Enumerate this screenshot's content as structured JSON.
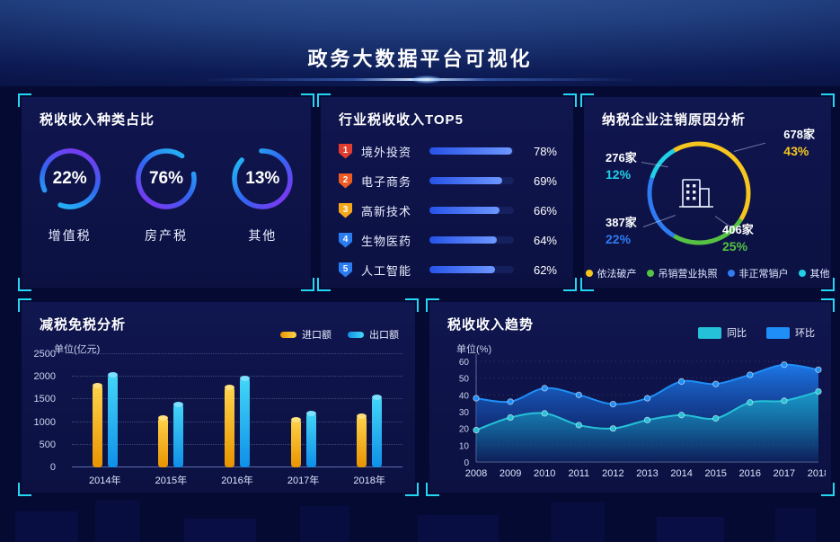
{
  "banner": {
    "title": "政务大数据平台可视化"
  },
  "chart_data": [
    {
      "id": "tax-type-share",
      "type": "pie",
      "title": "税收收入种类占比",
      "items": [
        {
          "label": "增值税",
          "value": 22,
          "pct_label": "22%"
        },
        {
          "label": "房产税",
          "value": 76,
          "pct_label": "76%"
        },
        {
          "label": "其他",
          "value": 13,
          "pct_label": "13%"
        }
      ],
      "ring_gradient": [
        "#8d2df2",
        "#3166f2",
        "#1fc9f5"
      ]
    },
    {
      "id": "industry-tax-top5",
      "type": "bar",
      "title": "行业税收收入TOP5",
      "items": [
        {
          "rank": "1",
          "label": "境外投资",
          "value": 78,
          "pct_label": "78%",
          "badge_color": "#e23c2e"
        },
        {
          "rank": "2",
          "label": "电子商务",
          "value": 69,
          "pct_label": "69%",
          "badge_color": "#ef5b23"
        },
        {
          "rank": "3",
          "label": "高新技术",
          "value": 66,
          "pct_label": "66%",
          "badge_color": "#f5a81c"
        },
        {
          "rank": "4",
          "label": "生物医药",
          "value": 64,
          "pct_label": "64%",
          "badge_color": "#2a7cf0"
        },
        {
          "rank": "5",
          "label": "人工智能",
          "value": 62,
          "pct_label": "62%",
          "badge_color": "#2a7cf0"
        }
      ],
      "bar_max": 80
    },
    {
      "id": "deregistration-reasons",
      "type": "pie",
      "title": "纳税企业注销原因分析",
      "slices": [
        {
          "label": "依法破产",
          "count": "678家",
          "value": 43,
          "pct_label": "43%",
          "color": "#f6c51e"
        },
        {
          "label": "吊销营业执照",
          "count": "406家",
          "value": 25,
          "pct_label": "25%",
          "color": "#56c243"
        },
        {
          "label": "非正常销户",
          "count": "387家",
          "value": 22,
          "pct_label": "22%",
          "color": "#2e7bf2"
        },
        {
          "label": "其他",
          "count": "276家",
          "value": 12,
          "pct_label": "12%",
          "color": "#1fd0e6"
        }
      ]
    },
    {
      "id": "tax-reduction",
      "type": "bar",
      "title": "减税免税分析",
      "unit": "单位(亿元)",
      "categories": [
        "2014年",
        "2015年",
        "2016年",
        "2017年",
        "2018年"
      ],
      "series": [
        {
          "name": "进口额",
          "color": "#e89400",
          "color_light": "#ffd44d",
          "cap_color": "#ffe07a",
          "values": [
            1850,
            1130,
            1800,
            1100,
            1180
          ]
        },
        {
          "name": "出口额",
          "color": "#0f8fe8",
          "color_light": "#45d7f7",
          "cap_color": "#7ce0ff",
          "values": [
            2080,
            1430,
            2000,
            1240,
            1580
          ]
        }
      ],
      "ylim": [
        0,
        2500
      ],
      "yticks": [
        0,
        500,
        1000,
        1500,
        2000,
        2500
      ],
      "grid": "dotted",
      "legend_position": "top-right"
    },
    {
      "id": "tax-trend",
      "type": "area",
      "title": "税收收入趋势",
      "unit": "单位(%)",
      "x": [
        "2008",
        "2009",
        "2010",
        "2011",
        "2012",
        "2013",
        "2014",
        "2015",
        "2016",
        "2017",
        "2018"
      ],
      "series": [
        {
          "name": "同比",
          "color": "#25c1d8",
          "fill_top": "rgba(25,180,205,0.70)",
          "fill_bottom": "rgba(25,180,205,0.04)",
          "values": [
            19,
            26.5,
            29,
            22,
            20,
            25,
            28,
            26,
            35.5,
            36.5,
            42
          ]
        },
        {
          "name": "环比",
          "color": "#1f8ef7",
          "fill_top": "rgba(30,125,240,0.95)",
          "fill_bottom": "rgba(12,45,130,0.25)",
          "values": [
            38,
            36,
            44,
            40,
            34.5,
            38,
            48,
            46.5,
            52,
            58,
            55
          ]
        }
      ],
      "ylim": [
        0,
        60
      ],
      "yticks": [
        0,
        10,
        20,
        30,
        40,
        50,
        60
      ],
      "grid": "dotted",
      "legend_position": "top-right"
    }
  ]
}
